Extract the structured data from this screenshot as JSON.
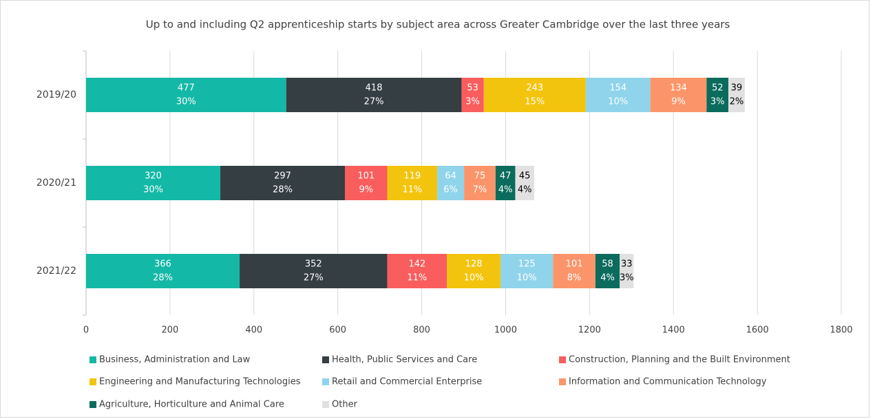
{
  "chart_data": {
    "type": "stacked_bar_horizontal",
    "title": "Up to and including Q2 apprenticeship starts by subject area across Greater Cambridge over the last three years",
    "categories": [
      "2019/20",
      "2020/21",
      "2021/22"
    ],
    "series": [
      {
        "name": "Business, Administration and Law",
        "color": "#14b8a6",
        "values": [
          477,
          320,
          366
        ],
        "percent_labels": [
          "30%",
          "30%",
          "28%"
        ]
      },
      {
        "name": "Health, Public Services and Care",
        "color": "#353e43",
        "values": [
          418,
          297,
          352
        ],
        "percent_labels": [
          "27%",
          "28%",
          "27%"
        ]
      },
      {
        "name": "Construction, Planning and the Built Environment",
        "color": "#f95d5d",
        "values": [
          53,
          101,
          142
        ],
        "percent_labels": [
          "3%",
          "9%",
          "11%"
        ]
      },
      {
        "name": "Engineering and Manufacturing Technologies",
        "color": "#f2c40d",
        "values": [
          243,
          119,
          128
        ],
        "percent_labels": [
          "15%",
          "11%",
          "10%"
        ]
      },
      {
        "name": "Retail and Commercial Enterprise",
        "color": "#8fd4ea",
        "values": [
          154,
          64,
          125
        ],
        "percent_labels": [
          "10%",
          "6%",
          "10%"
        ]
      },
      {
        "name": "Information and Communication Technology",
        "color": "#fb9569",
        "values": [
          134,
          75,
          101
        ],
        "percent_labels": [
          "9%",
          "7%",
          "8%"
        ]
      },
      {
        "name": "Agriculture, Horticulture and Animal Care",
        "color": "#0b6b5d",
        "values": [
          52,
          47,
          58
        ],
        "percent_labels": [
          "3%",
          "4%",
          "4%"
        ]
      },
      {
        "name": "Other",
        "color": "#e1e1e1",
        "values": [
          39,
          45,
          33
        ],
        "percent_labels": [
          "2%",
          "4%",
          "3%"
        ]
      }
    ],
    "xlim": [
      0,
      1800
    ],
    "xticks": [
      0,
      200,
      400,
      600,
      800,
      1000,
      1200,
      1400,
      1600,
      1800
    ],
    "grid": true,
    "legend": "bottom"
  }
}
